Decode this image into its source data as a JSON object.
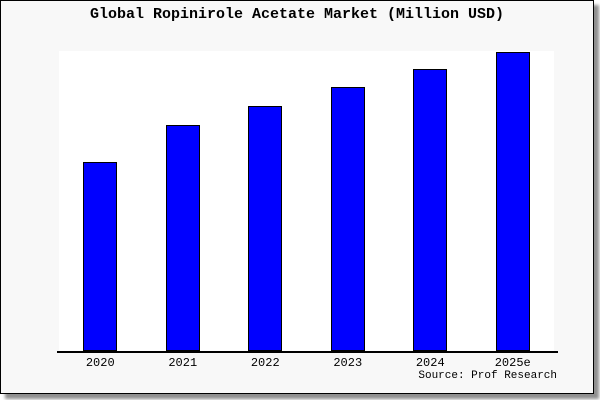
{
  "chart_data": {
    "type": "bar",
    "title": "Global Ropinirole Acetate Market (Million USD)",
    "categories": [
      "2020",
      "2021",
      "2022",
      "2023",
      "2024",
      "2025e"
    ],
    "series": [
      {
        "name": "Global Ropinirole Acetate Market",
        "values_pct_of_max": [
          63.2,
          75.6,
          81.9,
          88.3,
          94.3,
          100
        ]
      }
    ],
    "value_axis_note": "no y-axis ticks or numeric labels shown; values estimated relative to tallest bar (2025e = 100)",
    "xlabel": "",
    "ylabel": "",
    "grid": false,
    "legend": "none",
    "bar_color": "#0000ff",
    "bar_border_color": "#000000"
  },
  "source_note": "Source: Prof Research",
  "colors": {
    "page_background": "#f8f8f8",
    "plot_background": "#ffffff",
    "axis": "#000000",
    "text": "#000000",
    "bar_fill": "#0000ff",
    "bar_border": "#000000"
  }
}
